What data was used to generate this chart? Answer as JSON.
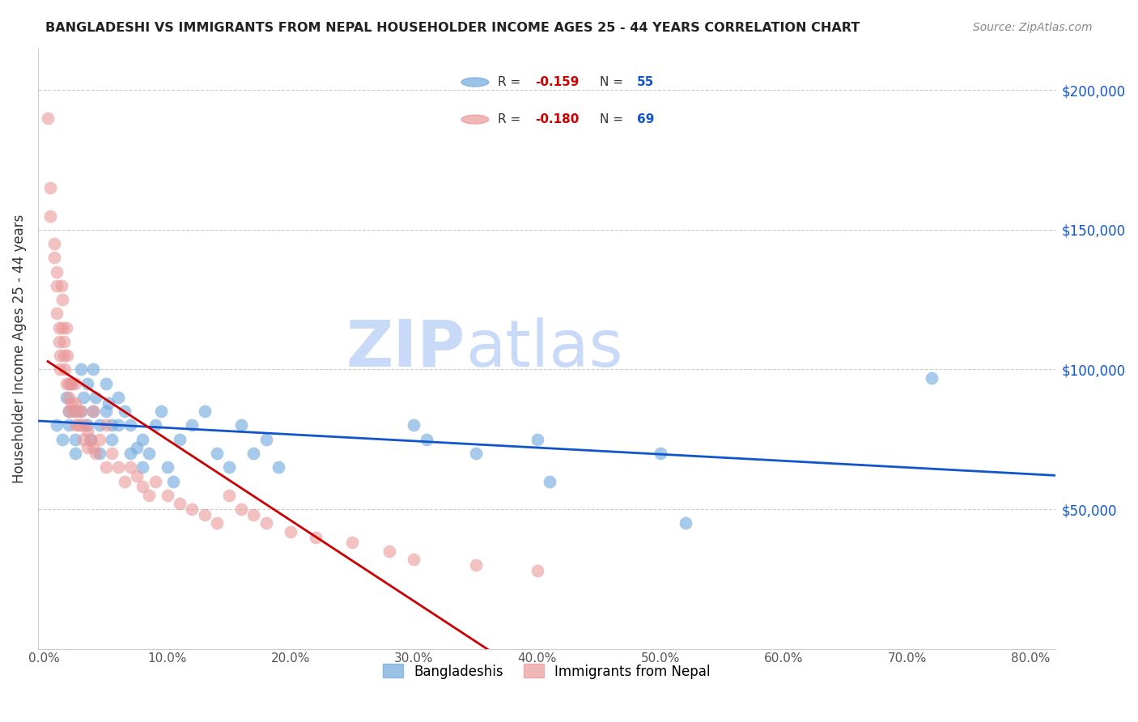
{
  "title": "BANGLADESHI VS IMMIGRANTS FROM NEPAL HOUSEHOLDER INCOME AGES 25 - 44 YEARS CORRELATION CHART",
  "source": "Source: ZipAtlas.com",
  "ylabel": "Householder Income Ages 25 - 44 years",
  "xlabel_ticks": [
    "0.0%",
    "10.0%",
    "20.0%",
    "30.0%",
    "40.0%",
    "50.0%",
    "60.0%",
    "70.0%",
    "80.0%"
  ],
  "xlabel_vals": [
    0.0,
    0.1,
    0.2,
    0.3,
    0.4,
    0.5,
    0.6,
    0.7,
    0.8
  ],
  "ytick_labels": [
    "$50,000",
    "$100,000",
    "$150,000",
    "$200,000"
  ],
  "ytick_vals": [
    50000,
    100000,
    150000,
    200000
  ],
  "ylim": [
    0,
    215000
  ],
  "xlim": [
    -0.005,
    0.82
  ],
  "legend_blue_r": "-0.159",
  "legend_blue_n": "55",
  "legend_pink_r": "-0.180",
  "legend_pink_n": "69",
  "blue_color": "#6fa8dc",
  "pink_color": "#ea9999",
  "blue_line_color": "#1155cc",
  "pink_line_color": "#cc0000",
  "pink_dash_color": "#ea9999",
  "watermark_zip": "ZIP",
  "watermark_atlas": "atlas",
  "watermark_color": "#c9daf8",
  "legend_label_blue": "Bangladeshis",
  "legend_label_pink": "Immigrants from Nepal",
  "bangladeshi_x": [
    0.01,
    0.015,
    0.018,
    0.02,
    0.02,
    0.022,
    0.025,
    0.025,
    0.025,
    0.03,
    0.03,
    0.032,
    0.035,
    0.035,
    0.038,
    0.04,
    0.04,
    0.042,
    0.045,
    0.045,
    0.05,
    0.05,
    0.052,
    0.055,
    0.055,
    0.06,
    0.06,
    0.065,
    0.07,
    0.07,
    0.075,
    0.08,
    0.08,
    0.085,
    0.09,
    0.095,
    0.1,
    0.105,
    0.11,
    0.12,
    0.13,
    0.14,
    0.15,
    0.16,
    0.17,
    0.18,
    0.19,
    0.3,
    0.31,
    0.35,
    0.4,
    0.41,
    0.5,
    0.52,
    0.72
  ],
  "bangladeshi_y": [
    80000,
    75000,
    90000,
    85000,
    80000,
    95000,
    85000,
    75000,
    70000,
    100000,
    85000,
    90000,
    95000,
    80000,
    75000,
    100000,
    85000,
    90000,
    80000,
    70000,
    95000,
    85000,
    88000,
    80000,
    75000,
    90000,
    80000,
    85000,
    80000,
    70000,
    72000,
    65000,
    75000,
    70000,
    80000,
    85000,
    65000,
    60000,
    75000,
    80000,
    85000,
    70000,
    65000,
    80000,
    70000,
    75000,
    65000,
    80000,
    75000,
    70000,
    75000,
    60000,
    70000,
    45000,
    97000
  ],
  "nepal_x": [
    0.003,
    0.005,
    0.005,
    0.008,
    0.008,
    0.01,
    0.01,
    0.01,
    0.012,
    0.012,
    0.013,
    0.013,
    0.014,
    0.015,
    0.015,
    0.016,
    0.016,
    0.017,
    0.018,
    0.018,
    0.019,
    0.02,
    0.02,
    0.02,
    0.022,
    0.022,
    0.023,
    0.025,
    0.025,
    0.025,
    0.027,
    0.028,
    0.03,
    0.03,
    0.032,
    0.033,
    0.035,
    0.035,
    0.038,
    0.04,
    0.04,
    0.042,
    0.045,
    0.05,
    0.05,
    0.055,
    0.06,
    0.065,
    0.07,
    0.075,
    0.08,
    0.085,
    0.09,
    0.1,
    0.11,
    0.12,
    0.13,
    0.14,
    0.15,
    0.16,
    0.17,
    0.18,
    0.2,
    0.22,
    0.25,
    0.28,
    0.3,
    0.35,
    0.4
  ],
  "nepal_y": [
    190000,
    165000,
    155000,
    145000,
    140000,
    135000,
    130000,
    120000,
    115000,
    110000,
    105000,
    100000,
    130000,
    125000,
    115000,
    110000,
    105000,
    100000,
    115000,
    95000,
    105000,
    95000,
    90000,
    85000,
    95000,
    88000,
    85000,
    95000,
    88000,
    80000,
    85000,
    80000,
    85000,
    80000,
    75000,
    80000,
    78000,
    72000,
    75000,
    85000,
    72000,
    70000,
    75000,
    80000,
    65000,
    70000,
    65000,
    60000,
    65000,
    62000,
    58000,
    55000,
    60000,
    55000,
    52000,
    50000,
    48000,
    45000,
    55000,
    50000,
    48000,
    45000,
    42000,
    40000,
    38000,
    35000,
    32000,
    30000,
    28000
  ]
}
